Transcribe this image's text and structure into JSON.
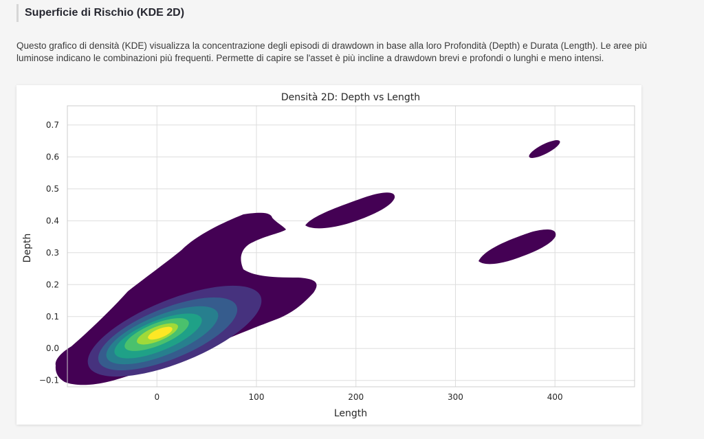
{
  "section": {
    "title": "Superficie di Rischio (KDE 2D)"
  },
  "description": "Questo grafico di densità (KDE) visualizza la concentrazione degli episodi di drawdown in base alla loro Profondità (Depth) e Durata (Length). Le aree più luminose indicano le combinazioni più frequenti. Permette di capire se l'asset è più incline a drawdown brevi e profondi o lunghi e meno intensi.",
  "chart_data": {
    "type": "kde_contour",
    "title": "Densità 2D: Depth vs Length",
    "xlabel": "Length",
    "ylabel": "Depth",
    "xlim": [
      -90,
      480
    ],
    "ylim": [
      -0.12,
      0.76
    ],
    "x_ticks": [
      0,
      100,
      200,
      300,
      400
    ],
    "y_ticks": [
      -0.1,
      0.0,
      0.1,
      0.2,
      0.3,
      0.4,
      0.5,
      0.6,
      0.7
    ],
    "y_tick_labels": [
      "−0.1",
      "0.0",
      "0.1",
      "0.2",
      "0.3",
      "0.4",
      "0.5",
      "0.6",
      "0.7"
    ],
    "grid": true,
    "colormap": "viridis",
    "levels": [
      {
        "level": 1,
        "color": "#440154"
      },
      {
        "level": 2,
        "color": "#46327e"
      },
      {
        "level": 3,
        "color": "#365c8d"
      },
      {
        "level": 4,
        "color": "#277f8e"
      },
      {
        "level": 5,
        "color": "#1fa187"
      },
      {
        "level": 6,
        "color": "#4ac16d"
      },
      {
        "level": 7,
        "color": "#a0da39"
      },
      {
        "level": 8,
        "color": "#fde725"
      }
    ],
    "regions": [
      {
        "name": "main-cluster",
        "peak_length": 5,
        "peak_depth": 0.03
      },
      {
        "name": "cluster-length-190",
        "center_length": 190,
        "center_depth": 0.42
      },
      {
        "name": "cluster-length-360",
        "center_length": 362,
        "center_depth": 0.31
      },
      {
        "name": "cluster-length-390",
        "center_length": 390,
        "center_depth": 0.61
      }
    ]
  }
}
